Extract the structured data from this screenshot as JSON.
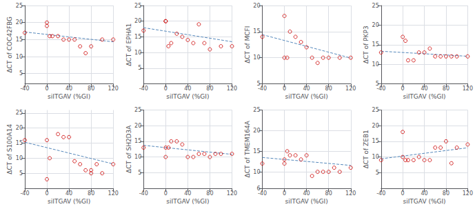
{
  "chart_data": [
    {
      "type": "scatter",
      "xlabel": "siITGAV (%GI)",
      "ylabel": "ΔCT of COC42FBG",
      "xlim": [
        -40,
        120
      ],
      "xticks": [
        -40,
        0,
        40,
        80,
        120
      ],
      "ylim": [
        2,
        25
      ],
      "yticks": [
        5,
        10,
        15,
        20,
        25
      ],
      "grid": true,
      "series": [
        {
          "type": "scatter",
          "marker": "circle",
          "color": "#cc0000",
          "x": [
            -40,
            0,
            0,
            5,
            10,
            20,
            30,
            40,
            50,
            60,
            70,
            80,
            100,
            120
          ],
          "values": [
            17,
            20,
            19,
            16,
            16,
            16,
            15,
            15,
            15,
            13,
            11,
            13,
            15,
            15
          ]
        },
        {
          "type": "line",
          "line_style": "dashed",
          "color": "#5588bb",
          "x": [
            -40,
            120
          ],
          "values": [
            17.22,
            14.34
          ]
        }
      ]
    },
    {
      "type": "scatter",
      "xlabel": "siITGAV (%GI)",
      "ylabel": "ΔCT of EPHA1",
      "xlim": [
        -40,
        120
      ],
      "xticks": [
        -40,
        0,
        40,
        80,
        120
      ],
      "ylim": [
        0,
        25
      ],
      "yticks": [
        5,
        10,
        15,
        20,
        25
      ],
      "grid": true,
      "series": [
        {
          "type": "scatter",
          "marker": "circle",
          "color": "#cc0000",
          "x": [
            -40,
            0,
            0,
            5,
            10,
            20,
            30,
            40,
            50,
            60,
            70,
            80,
            100,
            120
          ],
          "values": [
            17,
            20,
            20,
            12,
            13,
            16,
            15,
            14,
            13,
            19,
            13,
            11,
            12,
            12
          ]
        },
        {
          "type": "line",
          "line_style": "dashed",
          "color": "#5588bb",
          "x": [
            -40,
            120
          ],
          "values": [
            17.92,
            13.44
          ]
        }
      ]
    },
    {
      "type": "scatter",
      "xlabel": "siITGAV (%GI)",
      "ylabel": "ΔCT of MCFI",
      "xlim": [
        -40,
        120
      ],
      "xticks": [
        -40,
        0,
        40,
        80,
        120
      ],
      "ylim": [
        5,
        20
      ],
      "yticks": [
        5,
        10,
        15,
        20
      ],
      "grid": true,
      "series": [
        {
          "type": "scatter",
          "marker": "circle",
          "color": "#cc0000",
          "x": [
            -40,
            0,
            0,
            5,
            10,
            20,
            30,
            40,
            50,
            60,
            70,
            80,
            100,
            120
          ],
          "values": [
            14,
            18,
            10,
            10,
            15,
            14,
            13,
            12,
            10,
            9,
            10,
            10,
            10,
            10
          ]
        },
        {
          "type": "line",
          "line_style": "dashed",
          "color": "#5588bb",
          "x": [
            -40,
            120
          ],
          "values": [
            14.42,
            9.94
          ]
        }
      ]
    },
    {
      "type": "scatter",
      "xlabel": "siITGAV (%GI)",
      "ylabel": "ΔCT of PKP3",
      "xlim": [
        -40,
        120
      ],
      "xticks": [
        -40,
        0,
        40,
        80,
        120
      ],
      "ylim": [
        5,
        25
      ],
      "yticks": [
        5,
        10,
        15,
        20,
        25
      ],
      "grid": true,
      "series": [
        {
          "type": "scatter",
          "marker": "circle",
          "color": "#cc0000",
          "x": [
            -40,
            0,
            5,
            10,
            20,
            30,
            40,
            50,
            60,
            70,
            80,
            90,
            100,
            120
          ],
          "values": [
            13,
            17,
            16,
            11,
            11,
            13,
            13,
            14,
            12,
            12,
            12,
            12,
            12,
            12
          ]
        },
        {
          "type": "line",
          "line_style": "dashed",
          "color": "#5588bb",
          "x": [
            -40,
            120
          ],
          "values": [
            13.32,
            12.04
          ]
        }
      ]
    },
    {
      "type": "scatter",
      "xlabel": "siITGAV (%GI)",
      "ylabel": "ΔCT of S100A14",
      "xlim": [
        -40,
        120
      ],
      "xticks": [
        -40,
        0,
        40,
        80,
        120
      ],
      "ylim": [
        0,
        26
      ],
      "yticks": [
        5,
        10,
        15,
        20,
        25
      ],
      "grid": true,
      "series": [
        {
          "type": "scatter",
          "marker": "circle",
          "color": "#cc0000",
          "x": [
            -40,
            0,
            0,
            5,
            20,
            30,
            40,
            50,
            60,
            70,
            80,
            80,
            90,
            100,
            120
          ],
          "values": [
            16,
            3,
            16,
            10,
            18,
            17,
            17,
            9,
            8,
            6,
            5,
            6,
            8,
            5,
            8
          ]
        },
        {
          "type": "line",
          "line_style": "dashed",
          "color": "#5588bb",
          "x": [
            -40,
            120
          ],
          "values": [
            15.3,
            8.1
          ]
        }
      ]
    },
    {
      "type": "scatter",
      "xlabel": "siITGAV (%GI)",
      "ylabel": "ΔCT of SH2D3A",
      "xlim": [
        -40,
        120
      ],
      "xticks": [
        -40,
        0,
        40,
        80,
        120
      ],
      "ylim": [
        0,
        25
      ],
      "yticks": [
        5,
        10,
        15,
        20,
        25
      ],
      "grid": true,
      "series": [
        {
          "type": "scatter",
          "marker": "circle",
          "color": "#cc0000",
          "x": [
            -40,
            0,
            0,
            5,
            10,
            20,
            30,
            40,
            50,
            60,
            70,
            80,
            90,
            100,
            120
          ],
          "values": [
            13,
            10,
            13,
            13,
            15,
            15,
            14,
            10,
            10,
            11,
            11,
            10,
            11,
            11,
            11
          ]
        },
        {
          "type": "line",
          "line_style": "dashed",
          "color": "#5588bb",
          "x": [
            -40,
            120
          ],
          "values": [
            13.72,
            10.84
          ]
        }
      ]
    },
    {
      "type": "scatter",
      "xlabel": "siITGAV (%GI)",
      "ylabel": "ΔCT of TMEM164A",
      "xlim": [
        -40,
        120
      ],
      "xticks": [
        -40,
        0,
        40,
        80,
        120
      ],
      "ylim": [
        6,
        25
      ],
      "yticks": [
        6,
        10,
        15,
        20,
        25
      ],
      "grid": true,
      "series": [
        {
          "type": "scatter",
          "marker": "circle",
          "color": "#cc0000",
          "x": [
            -40,
            0,
            0,
            5,
            10,
            20,
            30,
            40,
            50,
            60,
            70,
            80,
            90,
            100,
            120
          ],
          "values": [
            12,
            13,
            12,
            15,
            14,
            14,
            13,
            14,
            9,
            10,
            10,
            10,
            11,
            10,
            11
          ]
        },
        {
          "type": "line",
          "line_style": "dashed",
          "color": "#5588bb",
          "x": [
            -40,
            120
          ],
          "values": [
            13.48,
            11.56
          ]
        }
      ]
    },
    {
      "type": "scatter",
      "xlabel": "siITGAV (%GI)",
      "ylabel": "ΔCT of ZEB1",
      "xlim": [
        -40,
        120
      ],
      "xticks": [
        -40,
        0,
        40,
        80,
        120
      ],
      "ylim": [
        0,
        25
      ],
      "yticks": [
        5,
        10,
        15,
        20,
        25
      ],
      "grid": true,
      "series": [
        {
          "type": "scatter",
          "marker": "circle",
          "color": "#cc0000",
          "x": [
            -40,
            0,
            0,
            5,
            10,
            20,
            30,
            40,
            50,
            60,
            70,
            80,
            90,
            100,
            120
          ],
          "values": [
            9,
            18,
            10,
            9,
            9,
            9,
            10,
            9,
            9,
            13,
            13,
            15,
            8,
            13,
            14
          ]
        },
        {
          "type": "line",
          "line_style": "dashed",
          "color": "#5588bb",
          "x": [
            -40,
            120
          ],
          "values": [
            9.42,
            12.94
          ]
        }
      ]
    }
  ]
}
